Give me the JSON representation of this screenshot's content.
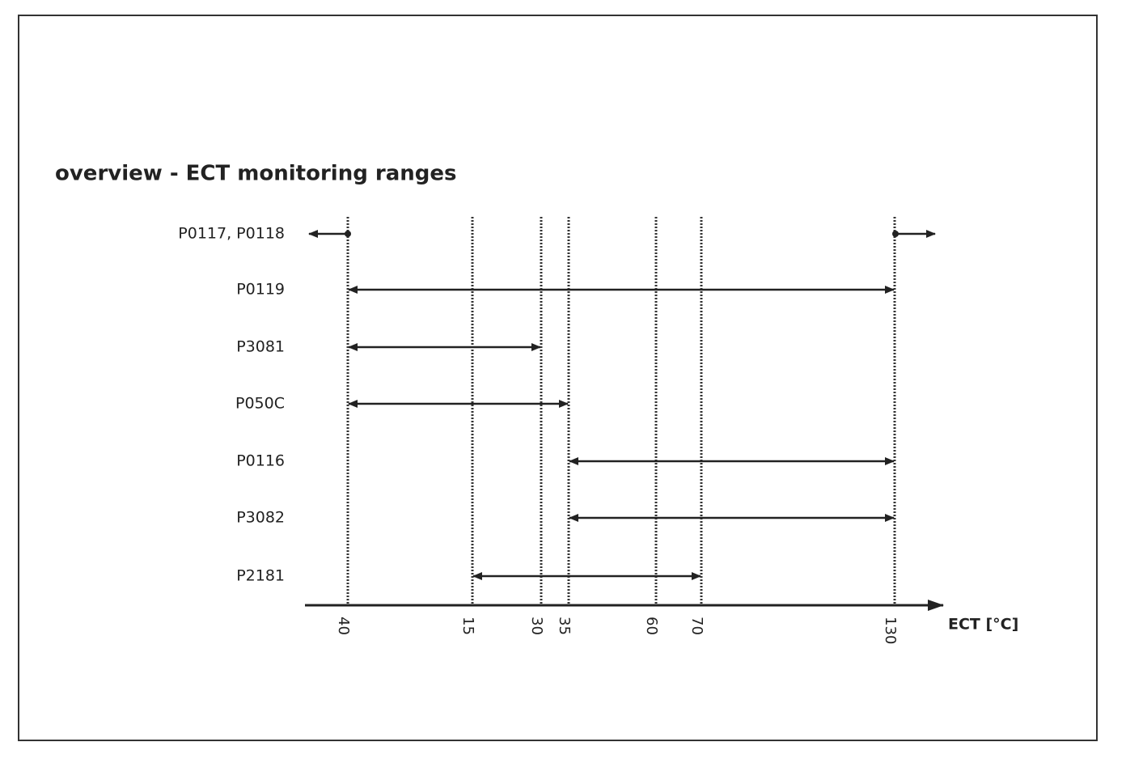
{
  "title": "overview - ECT monitoring ranges",
  "axis_label": "ECT [°C]",
  "ticks": [
    "40",
    "15",
    "30",
    "35",
    "60",
    "70",
    "130"
  ],
  "rows": [
    "P0117, P0118",
    "P0119",
    "P3081",
    "P050C",
    "P0116",
    "P3082",
    "P2181"
  ]
}
